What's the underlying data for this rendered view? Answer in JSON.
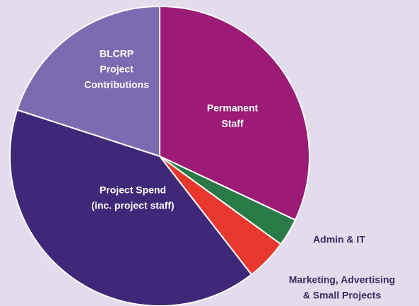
{
  "chart_data": {
    "type": "pie",
    "categories": [
      [
        "Permanent",
        "Staff"
      ],
      [
        "Admin & IT"
      ],
      [
        "Marketing, Advertising",
        "& Small Projects"
      ],
      [
        "Project Spend",
        "(inc. project staff)"
      ],
      [
        "BLCRP",
        "Project",
        "Contributions"
      ]
    ],
    "values": [
      32,
      3,
      4.5,
      40.5,
      20
    ],
    "colors": [
      "#9b1b76",
      "#2a7a47",
      "#e8382e",
      "#3f2878",
      "#7b6bb0"
    ],
    "start_angle": 0,
    "direction": "clockwise"
  }
}
